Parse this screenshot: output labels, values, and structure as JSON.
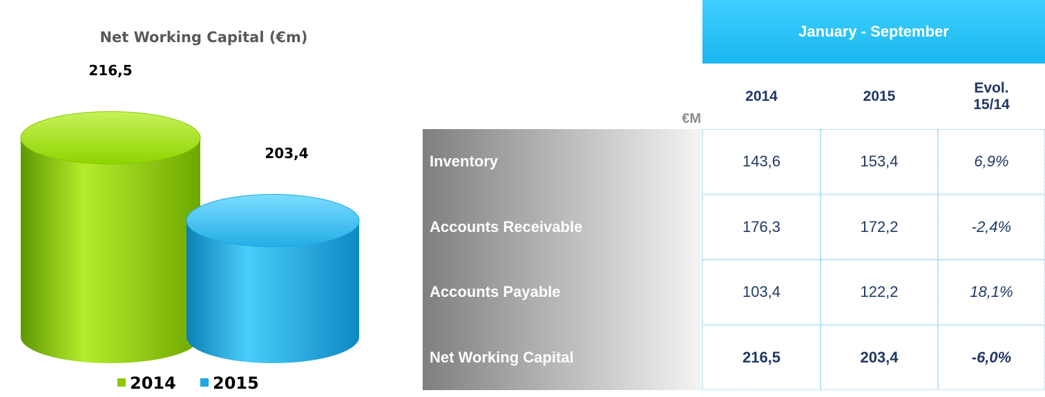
{
  "chart_data": {
    "type": "bar",
    "title": "Net Working Capital (€m)",
    "series": [
      {
        "name": "2014",
        "color": "#8cc800",
        "values": [
          216.5
        ],
        "value_labels": [
          "216,5"
        ]
      },
      {
        "name": "2015",
        "color": "#1ea8e0",
        "values": [
          203.4
        ],
        "value_labels": [
          "203,4"
        ]
      }
    ],
    "ylim": [
      185,
      230
    ]
  },
  "table": {
    "header": "January - September",
    "unit": "€M",
    "columns": [
      "2014",
      "2015",
      "Evol. 15/14"
    ],
    "rows": [
      [
        "Inventory",
        "143,6",
        "153,4",
        "6,9%"
      ],
      [
        "Accounts Receivable",
        "176,3",
        "172,2",
        "-2,4%"
      ],
      [
        "Accounts Payable",
        "103,4",
        "122,2",
        "18,1%"
      ],
      [
        "Net Working Capital",
        "216,5",
        "203,4",
        "-6,0%"
      ]
    ]
  }
}
